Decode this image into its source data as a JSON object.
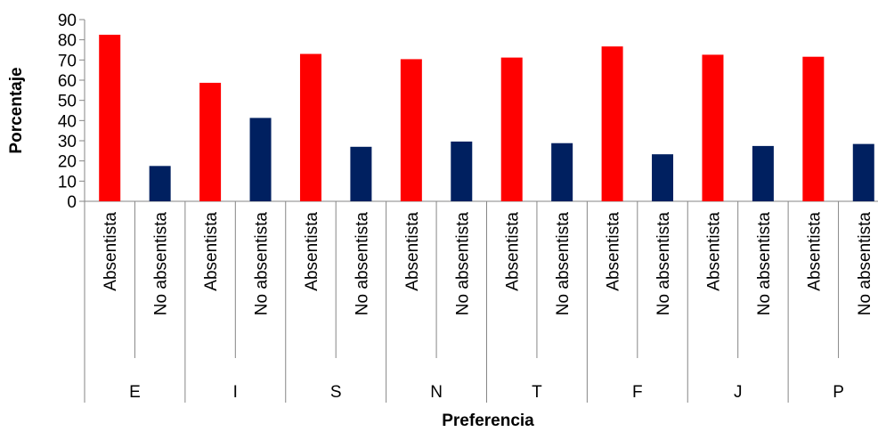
{
  "chart_data": {
    "type": "bar",
    "xlabel": "Preferencia",
    "ylabel": "Porcentaje",
    "ylim": [
      0,
      90
    ],
    "yticks": [
      0,
      10,
      20,
      30,
      40,
      50,
      60,
      70,
      80,
      90
    ],
    "grid": false,
    "legend": "none",
    "groups": [
      "E",
      "I",
      "S",
      "N",
      "T",
      "F",
      "J",
      "P"
    ],
    "subcategories": [
      "Absentista",
      "No absentista"
    ],
    "colors": {
      "Absentista": "#ff0000",
      "No absentista": "#002060"
    },
    "series": [
      {
        "values": [
          82.5,
          58.7,
          73.0,
          70.4,
          71.2,
          76.7,
          72.6,
          71.6
        ]
      },
      {
        "values": [
          17.5,
          41.3,
          27.0,
          29.6,
          28.8,
          23.3,
          27.4,
          28.4
        ]
      }
    ]
  }
}
